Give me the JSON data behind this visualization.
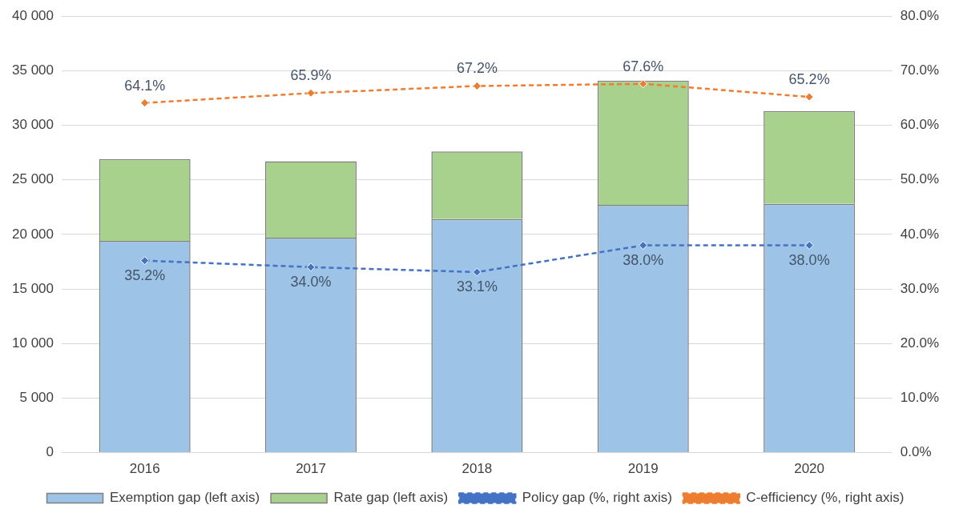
{
  "chart_data": {
    "type": "bar",
    "stacked": true,
    "categories": [
      "2016",
      "2017",
      "2018",
      "2019",
      "2020"
    ],
    "series": [
      {
        "name": "Exemption gap (left axis)",
        "color": "#9dc3e6",
        "values": [
          19400,
          19700,
          21400,
          22700,
          22800
        ]
      },
      {
        "name": "Rate gap (left axis)",
        "color": "#a9d18e",
        "values": [
          7500,
          7000,
          6200,
          11400,
          8500
        ]
      },
      {
        "name": "Policy gap (%, right axis)",
        "type": "line",
        "axis": "y2",
        "color": "#4472c4",
        "values": [
          35.2,
          34.0,
          33.1,
          38.0,
          38.0
        ],
        "value_labels": [
          "35.2%",
          "34.0%",
          "33.1%",
          "38.0%",
          "38.0%"
        ]
      },
      {
        "name": "C-efficiency (%, right axis)",
        "type": "line",
        "axis": "y2",
        "color": "#ed7d31",
        "values": [
          64.1,
          65.9,
          67.2,
          67.6,
          65.2
        ],
        "value_labels": [
          "64.1%",
          "65.9%",
          "67.2%",
          "67.6%",
          "65.2%"
        ]
      }
    ],
    "ylim": [
      0,
      40000
    ],
    "yticks": [
      0,
      {
        "value": 5000,
        "label": "5 000"
      },
      {
        "value": 10000,
        "label": "10 000"
      },
      {
        "value": 15000,
        "label": "15 000"
      },
      {
        "value": 20000,
        "label": "20 000"
      },
      {
        "value": 25000,
        "label": "25 000"
      },
      {
        "value": 30000,
        "label": "30 000"
      },
      {
        "value": 35000,
        "label": "35 000"
      },
      {
        "value": 40000,
        "label": "40 000"
      }
    ],
    "y2lim": [
      0,
      80
    ],
    "y2ticks": [
      {
        "value": 0,
        "label": "0.0%"
      },
      {
        "value": 10,
        "label": "10.0%"
      },
      {
        "value": 20,
        "label": "20.0%"
      },
      {
        "value": 30,
        "label": "30.0%"
      },
      {
        "value": 40,
        "label": "40.0%"
      },
      {
        "value": 50,
        "label": "50.0%"
      },
      {
        "value": 60,
        "label": "60.0%"
      },
      {
        "value": 70,
        "label": "70.0%"
      },
      {
        "value": 80,
        "label": "80.0%"
      }
    ],
    "grid": "y",
    "legend": "bottom",
    "marker": "diamond",
    "line_style": "dashed"
  }
}
